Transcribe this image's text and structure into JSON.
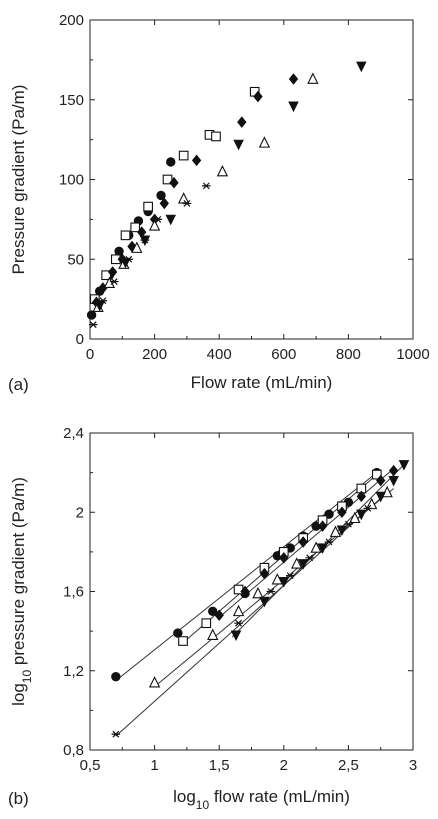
{
  "chart_data": [
    {
      "type": "scatter",
      "panel_label": "(a)",
      "xlabel": "Flow rate (mL/min)",
      "ylabel": "Pressure gradient (Pa/m)",
      "xlim": [
        0,
        1000
      ],
      "ylim": [
        0,
        200
      ],
      "xticks": [
        0,
        200,
        400,
        600,
        800,
        1000
      ],
      "yticks": [
        0,
        50,
        100,
        150,
        200
      ],
      "xtick_labels": [
        "0",
        "200",
        "400",
        "600",
        "800",
        "1000"
      ],
      "ytick_labels": [
        "0",
        "50",
        "100",
        "150",
        "200"
      ],
      "grid": false,
      "series": [
        {
          "marker": "filled-circle",
          "points": [
            [
              5,
              15
            ],
            [
              30,
              30
            ],
            [
              60,
              40
            ],
            [
              90,
              55
            ],
            [
              120,
              65
            ],
            [
              150,
              74
            ],
            [
              180,
              80
            ],
            [
              220,
              90
            ],
            [
              250,
              111
            ]
          ]
        },
        {
          "marker": "open-square",
          "points": [
            [
              15,
              25
            ],
            [
              50,
              40
            ],
            [
              80,
              50
            ],
            [
              110,
              65
            ],
            [
              140,
              70
            ],
            [
              180,
              83
            ],
            [
              240,
              100
            ],
            [
              290,
              115
            ],
            [
              370,
              128
            ],
            [
              390,
              127
            ],
            [
              510,
              155
            ]
          ]
        },
        {
          "marker": "filled-diamond",
          "points": [
            [
              20,
              23
            ],
            [
              40,
              32
            ],
            [
              70,
              42
            ],
            [
              100,
              50
            ],
            [
              130,
              58
            ],
            [
              160,
              67
            ],
            [
              200,
              75
            ],
            [
              230,
              85
            ],
            [
              260,
              98
            ],
            [
              330,
              112
            ],
            [
              470,
              136
            ],
            [
              520,
              152
            ],
            [
              630,
              163
            ]
          ]
        },
        {
          "marker": "open-triangle",
          "points": [
            [
              25,
              20
            ],
            [
              60,
              35
            ],
            [
              105,
              47
            ],
            [
              145,
              57
            ],
            [
              200,
              71
            ],
            [
              290,
              88
            ],
            [
              410,
              105
            ],
            [
              540,
              123
            ],
            [
              690,
              163
            ]
          ]
        },
        {
          "marker": "filled-inverted-triangle",
          "points": [
            [
              30,
              21
            ],
            [
              110,
              48
            ],
            [
              170,
              62
            ],
            [
              250,
              75
            ],
            [
              460,
              122
            ],
            [
              630,
              146
            ],
            [
              840,
              171
            ]
          ]
        },
        {
          "marker": "star",
          "points": [
            [
              10,
              9
            ],
            [
              40,
              24
            ],
            [
              75,
              36
            ],
            [
              120,
              50
            ],
            [
              170,
              62
            ],
            [
              210,
              75
            ],
            [
              300,
              85
            ],
            [
              360,
              96
            ]
          ]
        }
      ]
    },
    {
      "type": "scatter",
      "panel_label": "(b)",
      "xlabel": "log10 flow rate (mL/min)",
      "ylabel": "log10 pressure gradient (Pa/m)",
      "xlabel_parts": {
        "pre": "log",
        "sub": "10",
        "post": " flow rate (mL/min)"
      },
      "ylabel_parts": {
        "pre": "log",
        "sub": "10",
        "post": " pressure gradient (Pa/m)"
      },
      "xlim": [
        0.5,
        3.0
      ],
      "ylim": [
        0.8,
        2.4
      ],
      "xticks": [
        0.5,
        1,
        1.5,
        2,
        2.5,
        3
      ],
      "yticks": [
        0.8,
        1.2,
        1.6,
        2,
        2.4
      ],
      "xtick_labels": [
        "0,5",
        "1",
        "1,5",
        "2",
        "2,5",
        "3"
      ],
      "ytick_labels": [
        "0,8",
        "1,2",
        "1,6",
        "2",
        "2,4"
      ],
      "grid": false,
      "series": [
        {
          "marker": "filled-circle",
          "points": [
            [
              0.7,
              1.17
            ],
            [
              1.18,
              1.39
            ],
            [
              1.45,
              1.5
            ],
            [
              1.7,
              1.59
            ],
            [
              1.85,
              1.71
            ],
            [
              1.95,
              1.78
            ],
            [
              2.05,
              1.82
            ],
            [
              2.15,
              1.88
            ],
            [
              2.25,
              1.93
            ],
            [
              2.35,
              1.99
            ],
            [
              2.5,
              2.05
            ],
            [
              2.6,
              2.12
            ],
            [
              2.72,
              2.2
            ]
          ],
          "fit": [
            [
              0.7,
              1.15
            ],
            [
              2.72,
              2.2
            ]
          ]
        },
        {
          "marker": "open-square",
          "points": [
            [
              1.22,
              1.35
            ],
            [
              1.4,
              1.44
            ],
            [
              1.65,
              1.61
            ],
            [
              1.85,
              1.72
            ],
            [
              2.0,
              1.8
            ],
            [
              2.15,
              1.87
            ],
            [
              2.3,
              1.96
            ],
            [
              2.45,
              2.03
            ],
            [
              2.6,
              2.12
            ],
            [
              2.72,
              2.19
            ]
          ],
          "fit": [
            [
              1.2,
              1.33
            ],
            [
              2.72,
              2.19
            ]
          ]
        },
        {
          "marker": "filled-diamond",
          "points": [
            [
              1.5,
              1.48
            ],
            [
              1.7,
              1.6
            ],
            [
              1.85,
              1.69
            ],
            [
              2.0,
              1.77
            ],
            [
              2.15,
              1.85
            ],
            [
              2.3,
              1.93
            ],
            [
              2.45,
              2.0
            ],
            [
              2.6,
              2.08
            ],
            [
              2.75,
              2.16
            ],
            [
              2.85,
              2.21
            ]
          ],
          "fit": [
            [
              1.5,
              1.47
            ],
            [
              2.85,
              2.22
            ]
          ]
        },
        {
          "marker": "open-triangle",
          "points": [
            [
              1.0,
              1.14
            ],
            [
              1.45,
              1.38
            ],
            [
              1.65,
              1.5
            ],
            [
              1.8,
              1.59
            ],
            [
              1.95,
              1.66
            ],
            [
              2.1,
              1.74
            ],
            [
              2.25,
              1.82
            ],
            [
              2.4,
              1.9
            ],
            [
              2.55,
              1.97
            ],
            [
              2.68,
              2.04
            ],
            [
              2.8,
              2.1
            ]
          ],
          "fit": [
            [
              1.0,
              1.12
            ],
            [
              2.85,
              2.12
            ]
          ]
        },
        {
          "marker": "filled-inverted-triangle",
          "points": [
            [
              1.63,
              1.38
            ],
            [
              1.85,
              1.55
            ],
            [
              2.0,
              1.65
            ],
            [
              2.15,
              1.74
            ],
            [
              2.3,
              1.82
            ],
            [
              2.45,
              1.91
            ],
            [
              2.6,
              1.99
            ],
            [
              2.75,
              2.08
            ],
            [
              2.85,
              2.16
            ],
            [
              2.93,
              2.24
            ]
          ],
          "fit": [
            [
              1.6,
              1.37
            ],
            [
              2.93,
              2.24
            ]
          ]
        },
        {
          "marker": "star",
          "points": [
            [
              0.7,
              0.88
            ],
            [
              1.65,
              1.44
            ],
            [
              1.9,
              1.6
            ],
            [
              2.05,
              1.68
            ],
            [
              2.2,
              1.77
            ],
            [
              2.35,
              1.85
            ],
            [
              2.5,
              1.94
            ],
            [
              2.65,
              2.02
            ]
          ],
          "fit": [
            [
              0.7,
              0.87
            ],
            [
              2.8,
              2.1
            ]
          ]
        }
      ]
    }
  ]
}
